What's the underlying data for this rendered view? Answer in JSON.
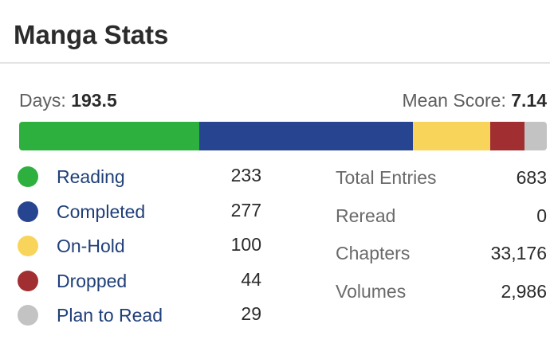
{
  "header": {
    "title": "Manga Stats"
  },
  "summary": {
    "days_label": "Days:",
    "days_value": "193.5",
    "mean_label": "Mean Score:",
    "mean_value": "7.14"
  },
  "progress_bar": {
    "segments": [
      {
        "name": "Reading",
        "value": 233,
        "color": "#2db03e"
      },
      {
        "name": "Completed",
        "value": 277,
        "color": "#26448f"
      },
      {
        "name": "On-Hold",
        "value": 100,
        "color": "#f9d45a"
      },
      {
        "name": "Dropped",
        "value": 44,
        "color": "#a12f31"
      },
      {
        "name": "Plan to Read",
        "value": 29,
        "color": "#c3c3c3"
      }
    ]
  },
  "legend": [
    {
      "label": "Reading",
      "count": "233",
      "color": "#2db03e"
    },
    {
      "label": "Completed",
      "count": "277",
      "color": "#26448f"
    },
    {
      "label": "On-Hold",
      "count": "100",
      "color": "#f9d45a"
    },
    {
      "label": "Dropped",
      "count": "44",
      "color": "#a12f31"
    },
    {
      "label": "Plan to Read",
      "count": "29",
      "color": "#c3c3c3"
    }
  ],
  "totals": [
    {
      "label": "Total Entries",
      "value": "683"
    },
    {
      "label": "Reread",
      "value": "0"
    },
    {
      "label": "Chapters",
      "value": "33,176"
    },
    {
      "label": "Volumes",
      "value": "2,986"
    }
  ]
}
